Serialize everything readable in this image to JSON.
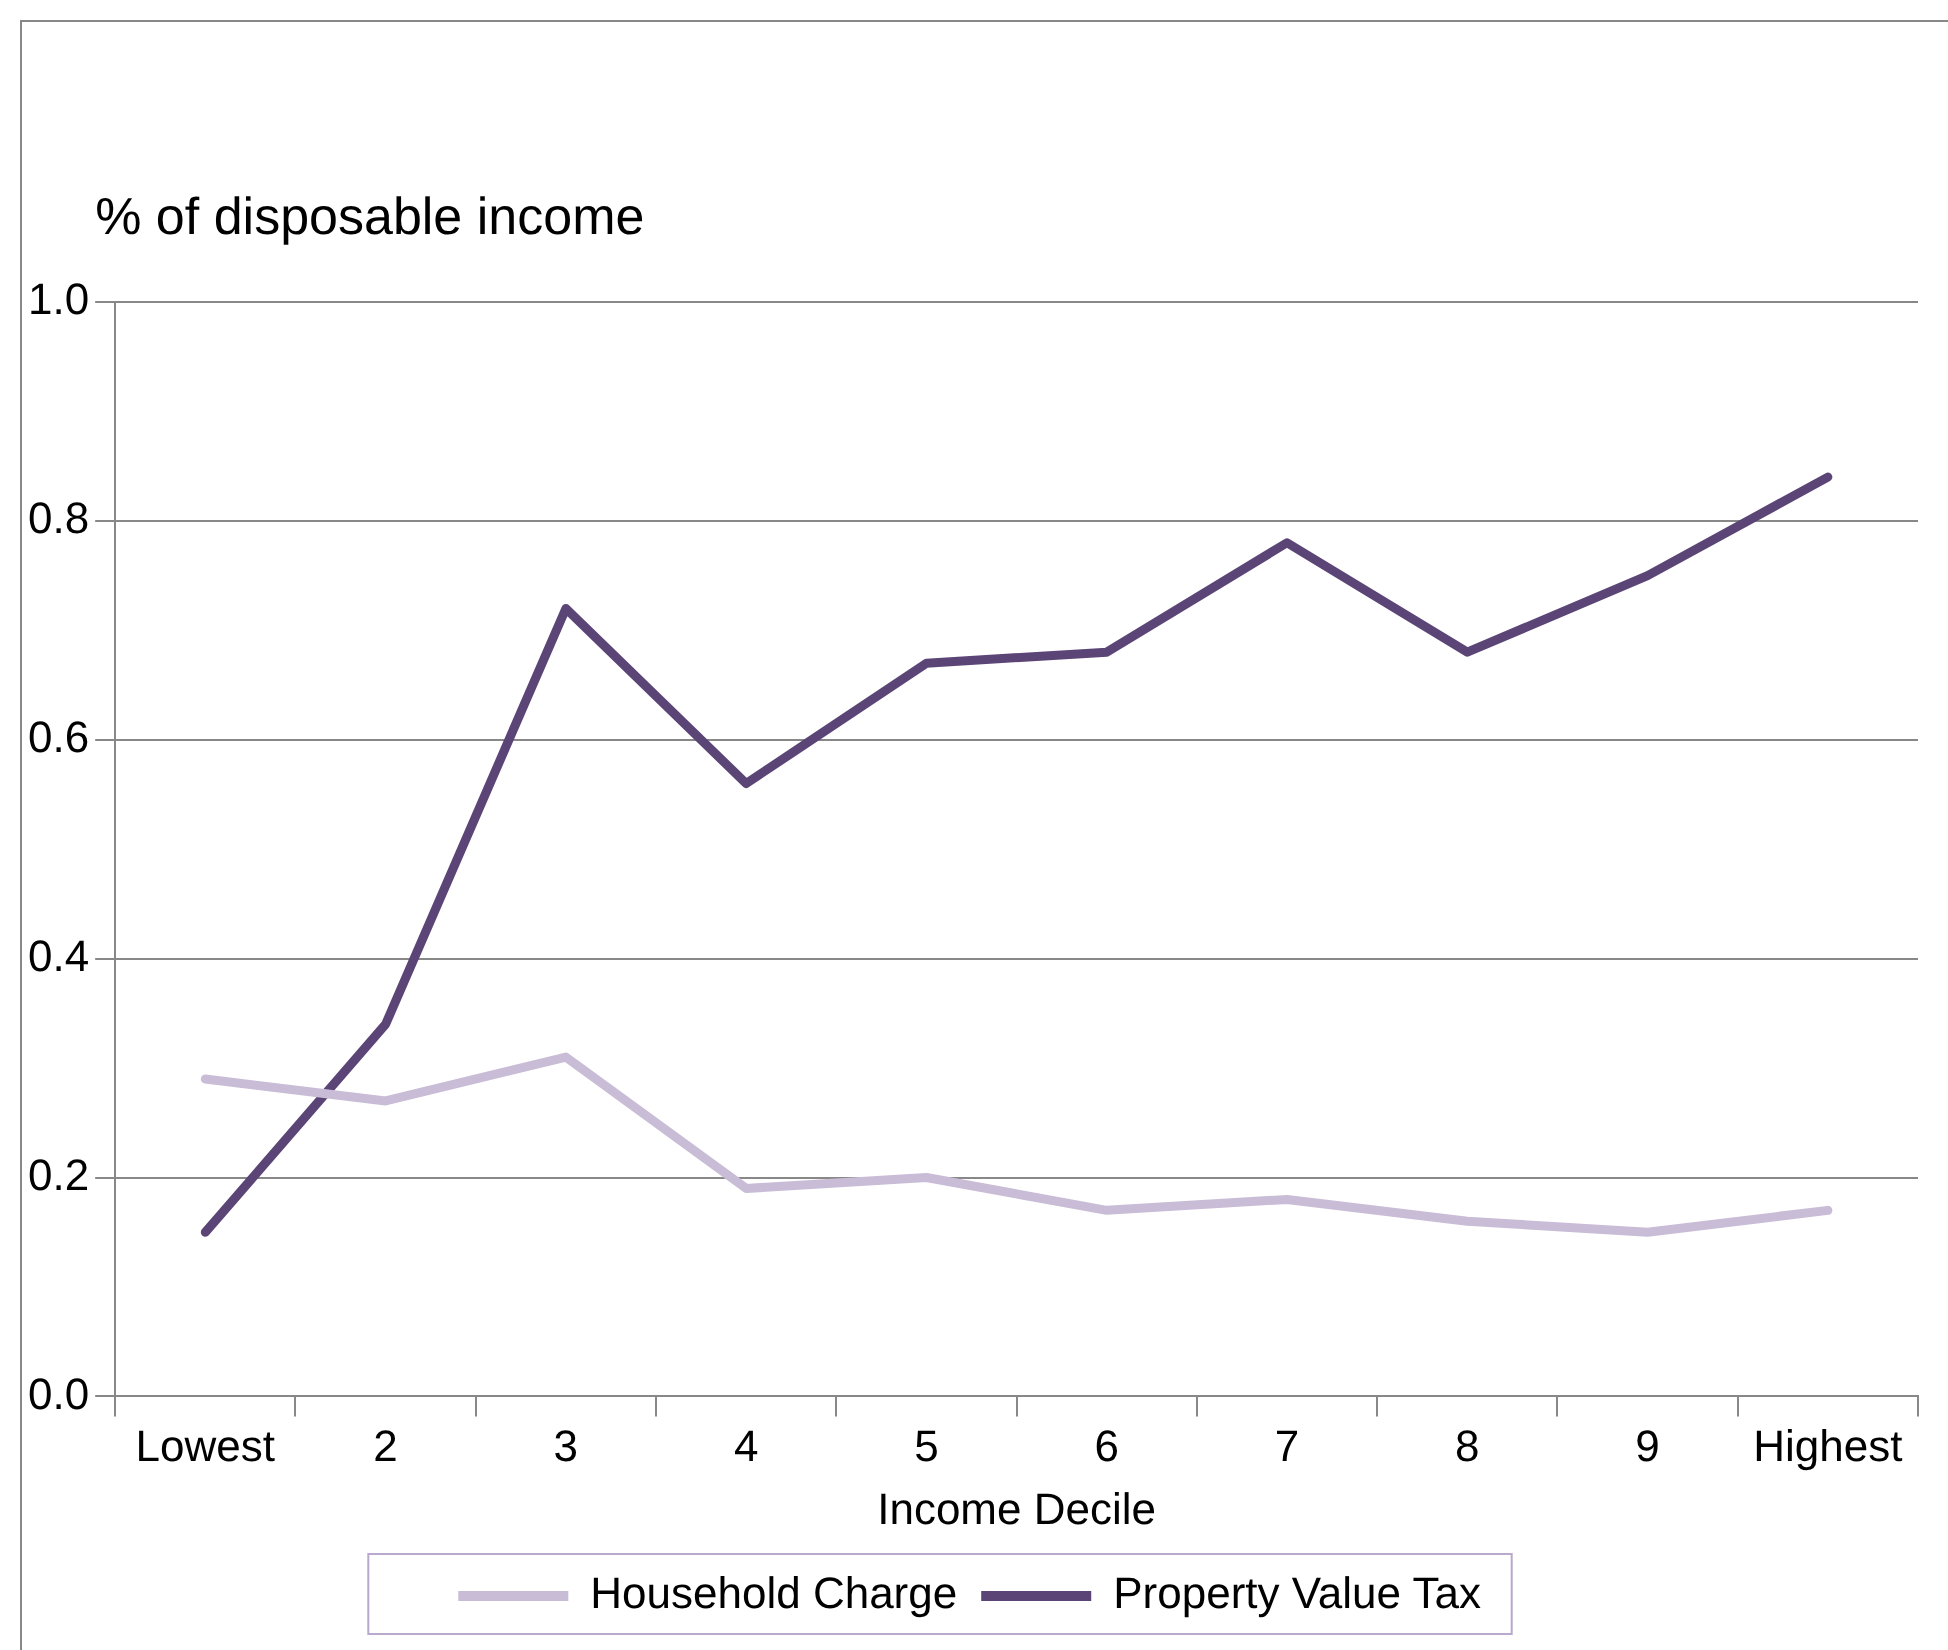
{
  "chart_data": {
    "type": "line",
    "ylabel": "% of disposable income",
    "xlabel": "Income Decile",
    "categories": [
      "Lowest",
      "2",
      "3",
      "4",
      "5",
      "6",
      "7",
      "8",
      "9",
      "Highest"
    ],
    "series": [
      {
        "name": "Household Charge",
        "color": "#c9bcd6",
        "values": [
          0.29,
          0.27,
          0.31,
          0.19,
          0.2,
          0.17,
          0.18,
          0.16,
          0.15,
          0.17
        ]
      },
      {
        "name": "Property Value Tax",
        "color": "#5b4476",
        "values": [
          0.15,
          0.34,
          0.72,
          0.56,
          0.67,
          0.68,
          0.78,
          0.68,
          0.75,
          0.84
        ]
      }
    ],
    "ylim": [
      0,
      1.0
    ],
    "yticks": [
      {
        "value": 0,
        "label": "0.0"
      },
      {
        "value": 0.2,
        "label": "0.2"
      },
      {
        "value": 0.4,
        "label": "0.4"
      },
      {
        "value": 0.6,
        "label": "0.6"
      },
      {
        "value": 0.8,
        "label": "0.8"
      },
      {
        "value": 1.0,
        "label": "1.0"
      }
    ],
    "grid": "y",
    "legend": "bottom",
    "marker": "none",
    "line_style": "solid"
  }
}
